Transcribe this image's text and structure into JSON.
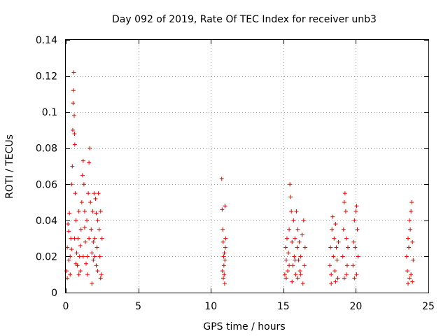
{
  "chart_data": {
    "type": "scatter",
    "title": "Day 092 of 2019, Rate Of TEC Index for receiver unb3",
    "xlabel": "GPS time / hours",
    "ylabel": "ROTI / TECUs",
    "xlim": [
      0,
      25
    ],
    "ylim": [
      0,
      0.14
    ],
    "xticks": [
      0,
      5,
      10,
      15,
      20,
      25
    ],
    "xtick_labels": [
      "0",
      "5",
      "10",
      "15",
      "20",
      "25"
    ],
    "yticks": [
      0,
      0.02,
      0.04,
      0.06,
      0.08,
      0.1,
      0.12,
      0.14
    ],
    "ytick_labels": [
      "0",
      "0.02",
      "0.04",
      "0.06",
      "0.08",
      "0.1",
      "0.12",
      "0.14"
    ],
    "grid": true,
    "marker": "+",
    "color": "#ee0000",
    "series": [
      {
        "name": "ROTI",
        "points": [
          [
            0.05,
            0.012
          ],
          [
            0.1,
            0.025
          ],
          [
            0.15,
            0.038
          ],
          [
            0.2,
            0.018
          ],
          [
            0.25,
            0.044
          ],
          [
            0.3,
            0.01
          ],
          [
            0.35,
            0.03
          ],
          [
            0.4,
            0.06
          ],
          [
            0.45,
            0.07
          ],
          [
            0.48,
            0.09
          ],
          [
            0.5,
            0.105
          ],
          [
            0.52,
            0.112
          ],
          [
            0.55,
            0.122
          ],
          [
            0.58,
            0.098
          ],
          [
            0.6,
            0.088
          ],
          [
            0.62,
            0.082
          ],
          [
            0.65,
            0.055
          ],
          [
            0.7,
            0.04
          ],
          [
            0.75,
            0.022
          ],
          [
            0.8,
            0.015
          ],
          [
            0.85,
            0.03
          ],
          [
            0.9,
            0.045
          ],
          [
            0.95,
            0.02
          ],
          [
            1.0,
            0.012
          ],
          [
            1.05,
            0.035
          ],
          [
            1.1,
            0.05
          ],
          [
            1.15,
            0.065
          ],
          [
            1.2,
            0.073
          ],
          [
            1.25,
            0.06
          ],
          [
            1.3,
            0.045
          ],
          [
            1.35,
            0.028
          ],
          [
            1.4,
            0.016
          ],
          [
            1.45,
            0.04
          ],
          [
            1.5,
            0.02
          ],
          [
            1.55,
            0.055
          ],
          [
            1.6,
            0.072
          ],
          [
            1.65,
            0.08
          ],
          [
            1.7,
            0.05
          ],
          [
            1.75,
            0.035
          ],
          [
            1.8,
            0.022
          ],
          [
            1.85,
            0.045
          ],
          [
            1.9,
            0.018
          ],
          [
            1.95,
            0.055
          ],
          [
            2.0,
            0.03
          ],
          [
            2.05,
            0.052
          ],
          [
            2.1,
            0.044
          ],
          [
            2.15,
            0.025
          ],
          [
            2.2,
            0.012
          ],
          [
            2.25,
            0.055
          ],
          [
            2.3,
            0.035
          ],
          [
            2.35,
            0.02
          ],
          [
            2.4,
            0.045
          ],
          [
            2.45,
            0.01
          ],
          [
            2.5,
            0.03
          ],
          [
            0.1,
            0.008
          ],
          [
            0.3,
            0.02
          ],
          [
            0.6,
            0.03
          ],
          [
            0.9,
            0.01
          ],
          [
            1.2,
            0.02
          ],
          [
            1.5,
            0.01
          ],
          [
            1.8,
            0.005
          ],
          [
            2.1,
            0.015
          ],
          [
            2.4,
            0.008
          ],
          [
            0.2,
            0.034
          ],
          [
            0.7,
            0.016
          ],
          [
            1.3,
            0.036
          ],
          [
            1.9,
            0.028
          ],
          [
            2.2,
            0.04
          ],
          [
            0.4,
            0.024
          ],
          [
            1.0,
            0.026
          ],
          [
            1.6,
            0.03
          ],
          [
            2.0,
            0.02
          ],
          [
            10.75,
            0.063
          ],
          [
            10.78,
            0.046
          ],
          [
            10.82,
            0.035
          ],
          [
            10.85,
            0.028
          ],
          [
            10.88,
            0.02
          ],
          [
            10.9,
            0.015
          ],
          [
            10.92,
            0.01
          ],
          [
            10.95,
            0.005
          ],
          [
            10.98,
            0.048
          ],
          [
            11.0,
            0.025
          ],
          [
            11.02,
            0.03
          ],
          [
            10.8,
            0.012
          ],
          [
            10.86,
            0.008
          ],
          [
            10.93,
            0.022
          ],
          [
            10.97,
            0.018
          ],
          [
            15.1,
            0.01
          ],
          [
            15.15,
            0.025
          ],
          [
            15.2,
            0.018
          ],
          [
            15.25,
            0.03
          ],
          [
            15.3,
            0.012
          ],
          [
            15.35,
            0.022
          ],
          [
            15.4,
            0.035
          ],
          [
            15.45,
            0.06
          ],
          [
            15.5,
            0.053
          ],
          [
            15.55,
            0.045
          ],
          [
            15.6,
            0.028
          ],
          [
            15.65,
            0.015
          ],
          [
            15.7,
            0.04
          ],
          [
            15.75,
            0.02
          ],
          [
            15.8,
            0.03
          ],
          [
            15.85,
            0.01
          ],
          [
            15.9,
            0.045
          ],
          [
            15.95,
            0.025
          ],
          [
            16.0,
            0.035
          ],
          [
            16.05,
            0.018
          ],
          [
            16.1,
            0.028
          ],
          [
            16.15,
            0.012
          ],
          [
            16.2,
            0.02
          ],
          [
            16.3,
            0.032
          ],
          [
            16.4,
            0.04
          ],
          [
            16.45,
            0.015
          ],
          [
            16.5,
            0.025
          ],
          [
            15.2,
            0.008
          ],
          [
            15.6,
            0.006
          ],
          [
            16.0,
            0.008
          ],
          [
            16.35,
            0.005
          ],
          [
            15.4,
            0.015
          ],
          [
            15.8,
            0.018
          ],
          [
            16.2,
            0.01
          ],
          [
            18.2,
            0.015
          ],
          [
            18.25,
            0.025
          ],
          [
            18.3,
            0.01
          ],
          [
            18.35,
            0.035
          ],
          [
            18.4,
            0.042
          ],
          [
            18.45,
            0.02
          ],
          [
            18.5,
            0.03
          ],
          [
            18.55,
            0.012
          ],
          [
            18.6,
            0.038
          ],
          [
            18.65,
            0.025
          ],
          [
            18.7,
            0.018
          ],
          [
            18.75,
            0.008
          ],
          [
            18.8,
            0.028
          ],
          [
            18.3,
            0.005
          ],
          [
            18.6,
            0.006
          ],
          [
            19.1,
            0.02
          ],
          [
            19.15,
            0.035
          ],
          [
            19.2,
            0.05
          ],
          [
            19.25,
            0.055
          ],
          [
            19.3,
            0.045
          ],
          [
            19.35,
            0.03
          ],
          [
            19.4,
            0.015
          ],
          [
            19.45,
            0.025
          ],
          [
            19.2,
            0.008
          ],
          [
            19.35,
            0.01
          ],
          [
            19.8,
            0.015
          ],
          [
            19.85,
            0.028
          ],
          [
            19.9,
            0.04
          ],
          [
            19.95,
            0.025
          ],
          [
            20.0,
            0.045
          ],
          [
            20.05,
            0.048
          ],
          [
            20.1,
            0.035
          ],
          [
            20.15,
            0.02
          ],
          [
            19.9,
            0.008
          ],
          [
            20.05,
            0.01
          ],
          [
            23.5,
            0.02
          ],
          [
            23.55,
            0.012
          ],
          [
            23.6,
            0.03
          ],
          [
            23.65,
            0.025
          ],
          [
            23.7,
            0.04
          ],
          [
            23.75,
            0.035
          ],
          [
            23.8,
            0.045
          ],
          [
            23.85,
            0.05
          ],
          [
            23.9,
            0.028
          ],
          [
            23.95,
            0.018
          ],
          [
            23.6,
            0.005
          ],
          [
            23.7,
            0.008
          ],
          [
            23.8,
            0.01
          ],
          [
            23.9,
            0.006
          ]
        ]
      }
    ]
  }
}
